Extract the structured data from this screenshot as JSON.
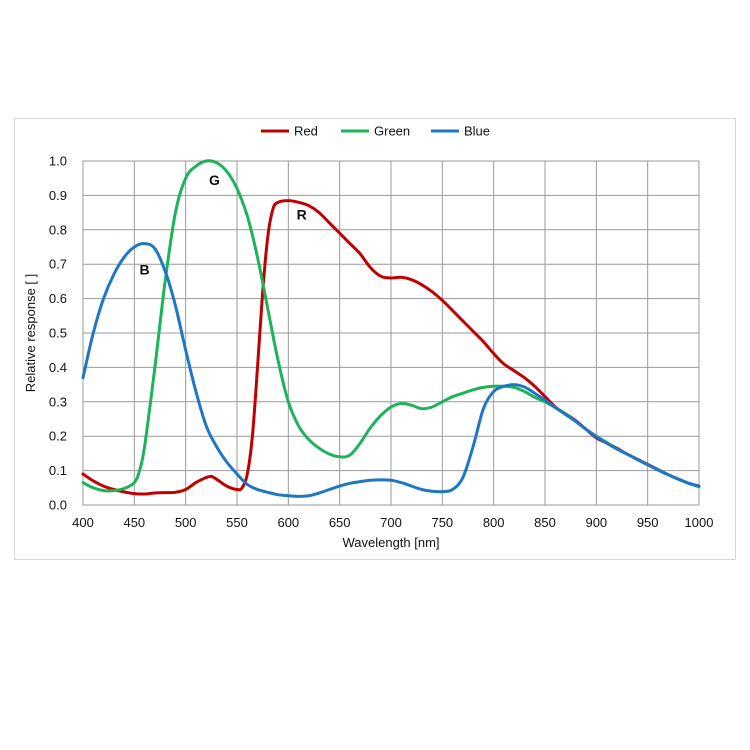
{
  "chart_data": {
    "type": "line",
    "title": "",
    "xlabel": "Wavelength [nm]",
    "ylabel": "Relative response [ ]",
    "xlim": [
      400,
      1000
    ],
    "ylim": [
      0,
      1.0
    ],
    "x_ticks": [
      "400",
      "450",
      "500",
      "550",
      "600",
      "650",
      "700",
      "750",
      "800",
      "850",
      "900",
      "950",
      "1000"
    ],
    "y_ticks": [
      "0.0",
      "0.1",
      "0.2",
      "0.3",
      "0.4",
      "0.5",
      "0.6",
      "0.7",
      "0.8",
      "0.9",
      "1.0"
    ],
    "grid": true,
    "legend_position": "top-center",
    "series": [
      {
        "name": "Red",
        "color": "#c00000",
        "points": [
          [
            400,
            0.09
          ],
          [
            410,
            0.07
          ],
          [
            420,
            0.055
          ],
          [
            430,
            0.045
          ],
          [
            440,
            0.038
          ],
          [
            450,
            0.033
          ],
          [
            460,
            0.032
          ],
          [
            470,
            0.035
          ],
          [
            480,
            0.036
          ],
          [
            490,
            0.037
          ],
          [
            500,
            0.045
          ],
          [
            510,
            0.065
          ],
          [
            520,
            0.08
          ],
          [
            525,
            0.083
          ],
          [
            530,
            0.075
          ],
          [
            540,
            0.055
          ],
          [
            550,
            0.045
          ],
          [
            555,
            0.05
          ],
          [
            560,
            0.09
          ],
          [
            565,
            0.2
          ],
          [
            570,
            0.4
          ],
          [
            575,
            0.62
          ],
          [
            580,
            0.78
          ],
          [
            585,
            0.86
          ],
          [
            590,
            0.88
          ],
          [
            600,
            0.885
          ],
          [
            610,
            0.88
          ],
          [
            620,
            0.87
          ],
          [
            630,
            0.85
          ],
          [
            640,
            0.82
          ],
          [
            650,
            0.79
          ],
          [
            660,
            0.76
          ],
          [
            670,
            0.73
          ],
          [
            680,
            0.69
          ],
          [
            690,
            0.665
          ],
          [
            700,
            0.66
          ],
          [
            710,
            0.662
          ],
          [
            720,
            0.655
          ],
          [
            730,
            0.64
          ],
          [
            740,
            0.62
          ],
          [
            750,
            0.595
          ],
          [
            760,
            0.565
          ],
          [
            770,
            0.535
          ],
          [
            780,
            0.505
          ],
          [
            790,
            0.475
          ],
          [
            800,
            0.44
          ],
          [
            810,
            0.41
          ],
          [
            820,
            0.39
          ],
          [
            830,
            0.37
          ],
          [
            840,
            0.345
          ],
          [
            850,
            0.315
          ],
          [
            860,
            0.285
          ],
          [
            870,
            0.265
          ],
          [
            880,
            0.245
          ],
          [
            890,
            0.22
          ],
          [
            900,
            0.195
          ],
          [
            910,
            0.18
          ],
          [
            920,
            0.165
          ],
          [
            930,
            0.148
          ],
          [
            940,
            0.133
          ],
          [
            950,
            0.118
          ],
          [
            960,
            0.103
          ],
          [
            970,
            0.088
          ],
          [
            980,
            0.075
          ],
          [
            990,
            0.063
          ],
          [
            1000,
            0.055
          ]
        ]
      },
      {
        "name": "Green",
        "color": "#1db35a",
        "points": [
          [
            400,
            0.065
          ],
          [
            410,
            0.05
          ],
          [
            420,
            0.042
          ],
          [
            430,
            0.042
          ],
          [
            440,
            0.048
          ],
          [
            450,
            0.065
          ],
          [
            455,
            0.1
          ],
          [
            460,
            0.17
          ],
          [
            470,
            0.4
          ],
          [
            480,
            0.65
          ],
          [
            490,
            0.85
          ],
          [
            500,
            0.95
          ],
          [
            510,
            0.985
          ],
          [
            520,
            1.0
          ],
          [
            530,
            0.995
          ],
          [
            540,
            0.97
          ],
          [
            550,
            0.92
          ],
          [
            560,
            0.84
          ],
          [
            570,
            0.72
          ],
          [
            580,
            0.57
          ],
          [
            590,
            0.42
          ],
          [
            600,
            0.3
          ],
          [
            610,
            0.23
          ],
          [
            620,
            0.19
          ],
          [
            630,
            0.165
          ],
          [
            640,
            0.148
          ],
          [
            650,
            0.14
          ],
          [
            660,
            0.145
          ],
          [
            670,
            0.18
          ],
          [
            680,
            0.225
          ],
          [
            690,
            0.26
          ],
          [
            700,
            0.285
          ],
          [
            710,
            0.295
          ],
          [
            720,
            0.29
          ],
          [
            730,
            0.28
          ],
          [
            740,
            0.285
          ],
          [
            750,
            0.3
          ],
          [
            760,
            0.315
          ],
          [
            770,
            0.325
          ],
          [
            780,
            0.335
          ],
          [
            790,
            0.342
          ],
          [
            800,
            0.345
          ],
          [
            810,
            0.345
          ],
          [
            820,
            0.342
          ],
          [
            830,
            0.33
          ],
          [
            840,
            0.313
          ],
          [
            850,
            0.3
          ],
          [
            860,
            0.283
          ],
          [
            870,
            0.265
          ],
          [
            880,
            0.243
          ],
          [
            890,
            0.22
          ],
          [
            900,
            0.2
          ],
          [
            910,
            0.182
          ],
          [
            920,
            0.163
          ],
          [
            930,
            0.148
          ],
          [
            940,
            0.132
          ],
          [
            950,
            0.117
          ],
          [
            960,
            0.102
          ],
          [
            970,
            0.088
          ],
          [
            980,
            0.075
          ],
          [
            990,
            0.063
          ],
          [
            1000,
            0.053
          ]
        ]
      },
      {
        "name": "Blue",
        "color": "#1f77c4",
        "points": [
          [
            400,
            0.37
          ],
          [
            410,
            0.5
          ],
          [
            420,
            0.6
          ],
          [
            430,
            0.67
          ],
          [
            440,
            0.72
          ],
          [
            450,
            0.75
          ],
          [
            460,
            0.76
          ],
          [
            470,
            0.745
          ],
          [
            480,
            0.68
          ],
          [
            490,
            0.58
          ],
          [
            500,
            0.45
          ],
          [
            510,
            0.33
          ],
          [
            520,
            0.23
          ],
          [
            530,
            0.17
          ],
          [
            540,
            0.125
          ],
          [
            550,
            0.09
          ],
          [
            560,
            0.06
          ],
          [
            570,
            0.045
          ],
          [
            580,
            0.037
          ],
          [
            590,
            0.03
          ],
          [
            600,
            0.027
          ],
          [
            610,
            0.025
          ],
          [
            620,
            0.027
          ],
          [
            630,
            0.035
          ],
          [
            640,
            0.045
          ],
          [
            650,
            0.055
          ],
          [
            660,
            0.063
          ],
          [
            670,
            0.068
          ],
          [
            680,
            0.072
          ],
          [
            690,
            0.073
          ],
          [
            700,
            0.072
          ],
          [
            710,
            0.065
          ],
          [
            720,
            0.055
          ],
          [
            730,
            0.045
          ],
          [
            740,
            0.04
          ],
          [
            750,
            0.039
          ],
          [
            760,
            0.045
          ],
          [
            770,
            0.08
          ],
          [
            780,
            0.17
          ],
          [
            790,
            0.28
          ],
          [
            800,
            0.33
          ],
          [
            810,
            0.345
          ],
          [
            820,
            0.35
          ],
          [
            830,
            0.343
          ],
          [
            840,
            0.325
          ],
          [
            850,
            0.305
          ],
          [
            860,
            0.283
          ],
          [
            870,
            0.263
          ],
          [
            880,
            0.243
          ],
          [
            890,
            0.22
          ],
          [
            900,
            0.198
          ],
          [
            910,
            0.18
          ],
          [
            920,
            0.163
          ],
          [
            930,
            0.148
          ],
          [
            940,
            0.132
          ],
          [
            950,
            0.117
          ],
          [
            960,
            0.102
          ],
          [
            970,
            0.088
          ],
          [
            980,
            0.075
          ],
          [
            990,
            0.063
          ],
          [
            1000,
            0.055
          ]
        ]
      }
    ],
    "annotations": [
      {
        "text": "B",
        "x": 460,
        "y": 0.67
      },
      {
        "text": "G",
        "x": 528,
        "y": 0.93
      },
      {
        "text": "R",
        "x": 613,
        "y": 0.83
      }
    ]
  }
}
